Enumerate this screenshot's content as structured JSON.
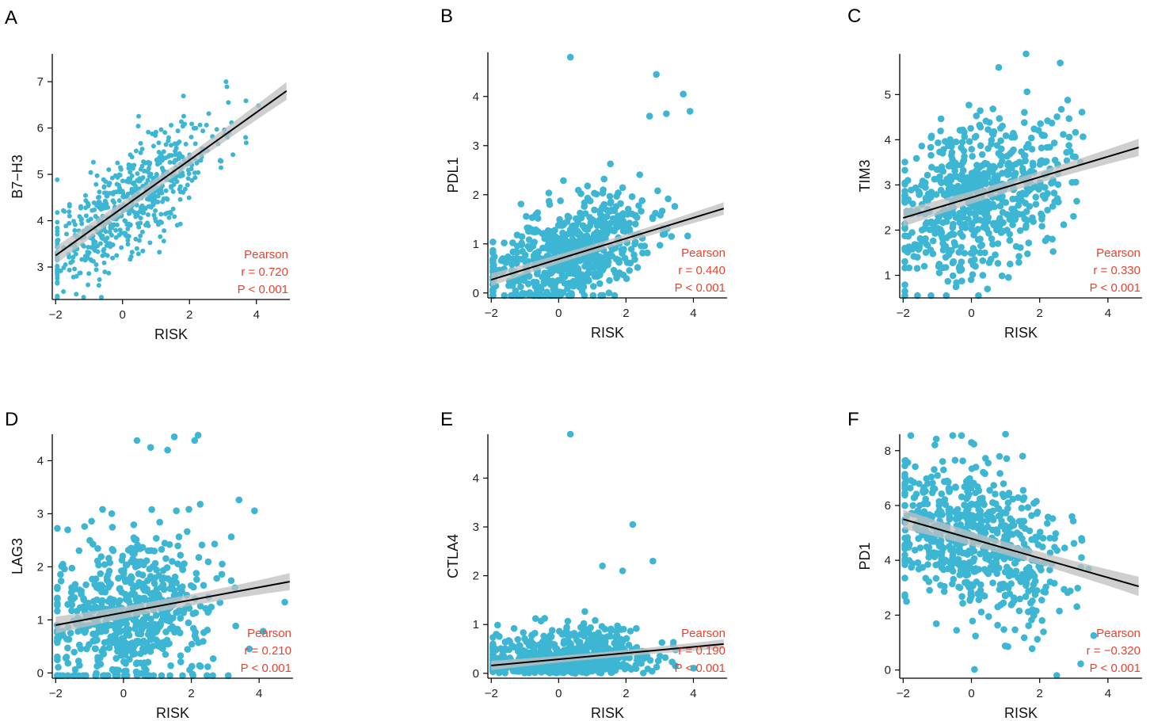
{
  "chart_data": [
    {
      "type": "scatter",
      "panel": "A",
      "xlabel": "RISK",
      "ylabel": "B7−H3",
      "xlim": [
        -2.1,
        5.0
      ],
      "ylim": [
        2.3,
        7.6
      ],
      "xticks": [
        -2,
        0,
        2,
        4
      ],
      "yticks": [
        3,
        4,
        5,
        6,
        7
      ],
      "fit": {
        "x": [
          -2,
          4.9
        ],
        "y": [
          3.25,
          6.8
        ],
        "band": 0.12
      },
      "point_cloud": {
        "n": 640,
        "slope": 0.52,
        "intercept": 4.3,
        "sd": 0.55,
        "seed": 11
      },
      "outliers": [],
      "stats": {
        "method": "Pearson",
        "r": "r = 0.720",
        "p": "P < 0.001"
      }
    },
    {
      "type": "scatter",
      "panel": "B",
      "xlabel": "RISK",
      "ylabel": "PDL1",
      "xlim": [
        -2.1,
        5.0
      ],
      "ylim": [
        -0.1,
        4.9
      ],
      "xticks": [
        -2,
        0,
        2,
        4
      ],
      "yticks": [
        0,
        1,
        2,
        3,
        4
      ],
      "fit": {
        "x": [
          -2,
          4.9
        ],
        "y": [
          0.27,
          1.72
        ],
        "band": 0.08
      },
      "point_cloud": {
        "n": 640,
        "slope": 0.21,
        "intercept": 0.72,
        "sd": 0.5,
        "seed": 23
      },
      "outliers": [
        [
          0.35,
          4.8
        ],
        [
          2.9,
          4.45
        ],
        [
          3.7,
          4.05
        ],
        [
          3.9,
          3.7
        ],
        [
          3.2,
          3.65
        ],
        [
          2.7,
          3.6
        ]
      ],
      "stats": {
        "method": "Pearson",
        "r": "r = 0.440",
        "p": "P < 0.001"
      }
    },
    {
      "type": "scatter",
      "panel": "C",
      "xlabel": "RISK",
      "ylabel": "TIM3",
      "xlim": [
        -2.1,
        5.0
      ],
      "ylim": [
        0.5,
        5.9
      ],
      "xticks": [
        -2,
        0,
        2,
        4
      ],
      "yticks": [
        1,
        2,
        3,
        4,
        5
      ],
      "fit": {
        "x": [
          -2,
          4.9
        ],
        "y": [
          2.27,
          3.83
        ],
        "band": 0.12
      },
      "point_cloud": {
        "n": 640,
        "slope": 0.23,
        "intercept": 2.72,
        "sd": 0.85,
        "seed": 37
      },
      "outliers": [
        [
          1.6,
          5.9
        ],
        [
          2.6,
          5.7
        ],
        [
          0.8,
          5.6
        ]
      ],
      "stats": {
        "method": "Pearson",
        "r": "r = 0.330",
        "p": "P < 0.001"
      }
    },
    {
      "type": "scatter",
      "panel": "D",
      "xlabel": "RISK",
      "ylabel": "LAG3",
      "xlim": [
        -2.1,
        5.0
      ],
      "ylim": [
        -0.1,
        4.5
      ],
      "xticks": [
        -2,
        0,
        2,
        4
      ],
      "yticks": [
        0,
        1,
        2,
        3,
        4
      ],
      "fit": {
        "x": [
          -2,
          4.9
        ],
        "y": [
          0.9,
          1.72
        ],
        "band": 0.1
      },
      "point_cloud": {
        "n": 640,
        "slope": 0.12,
        "intercept": 1.12,
        "sd": 0.75,
        "seed": 49
      },
      "outliers": [
        [
          0.4,
          4.38
        ],
        [
          0.8,
          4.25
        ],
        [
          1.5,
          4.45
        ],
        [
          2.2,
          4.48
        ],
        [
          1.3,
          4.2
        ],
        [
          2.1,
          4.38
        ]
      ],
      "stats": {
        "method": "Pearson",
        "r": "r = 0.210",
        "p": "P < 0.001"
      }
    },
    {
      "type": "scatter",
      "panel": "E",
      "xlabel": "RISK",
      "ylabel": "CTLA4",
      "xlim": [
        -2.1,
        5.0
      ],
      "ylim": [
        -0.1,
        4.9
      ],
      "xticks": [
        -2,
        0,
        2,
        4
      ],
      "yticks": [
        0,
        1,
        2,
        3,
        4
      ],
      "fit": {
        "x": [
          -2,
          4.9
        ],
        "y": [
          0.16,
          0.6
        ],
        "band": 0.06
      },
      "point_cloud": {
        "n": 640,
        "slope": 0.06,
        "intercept": 0.28,
        "sd": 0.38,
        "seed": 61,
        "floor": 0.0
      },
      "outliers": [
        [
          0.35,
          4.9
        ],
        [
          2.2,
          3.05
        ],
        [
          2.8,
          2.3
        ],
        [
          1.3,
          2.2
        ],
        [
          1.9,
          2.1
        ]
      ],
      "stats": {
        "method": "Pearson",
        "r": "r = 0.190",
        "p": "P < 0.001"
      }
    },
    {
      "type": "scatter",
      "panel": "F",
      "xlabel": "RISK",
      "ylabel": "PD1",
      "xlim": [
        -2.1,
        5.0
      ],
      "ylim": [
        -0.3,
        8.6
      ],
      "xticks": [
        -2,
        0,
        2,
        4
      ],
      "yticks": [
        0,
        2,
        4,
        6,
        8
      ],
      "fit": {
        "x": [
          -2,
          4.9
        ],
        "y": [
          5.5,
          3.05
        ],
        "band": 0.22
      },
      "point_cloud": {
        "n": 640,
        "slope": -0.36,
        "intercept": 4.7,
        "sd": 1.35,
        "seed": 73
      },
      "outliers": [
        [
          1.0,
          8.6
        ],
        [
          0.0,
          8.3
        ],
        [
          1.5,
          7.8
        ],
        [
          -1.9,
          2.5
        ],
        [
          2.5,
          -0.2
        ]
      ],
      "stats": {
        "method": "Pearson",
        "r": "r = −0.320",
        "p": "P < 0.001"
      }
    }
  ]
}
